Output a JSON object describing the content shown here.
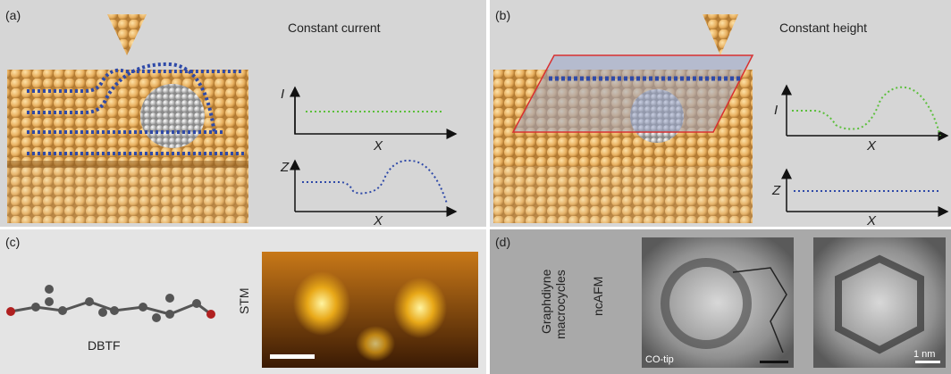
{
  "panels": [
    {
      "label": "(a)",
      "title": "Constant current",
      "plots": [
        {
          "y_label": "I",
          "x_label": "X"
        },
        {
          "y_label": "Z",
          "x_label": "X"
        }
      ]
    },
    {
      "label": "(b)",
      "title": "Constant height",
      "plots": [
        {
          "y_label": "I",
          "x_label": "X"
        },
        {
          "y_label": "Z",
          "x_label": "X"
        }
      ]
    },
    {
      "label": "(c)",
      "molecule_label": "DBTF",
      "image_label": "STM"
    },
    {
      "label": "(d)",
      "side_label": [
        "Graphdiyne",
        "macrocycles"
      ],
      "method_label": "ncAFM",
      "tip_label": "CO-tip",
      "scale_label": "1 nm"
    }
  ]
}
